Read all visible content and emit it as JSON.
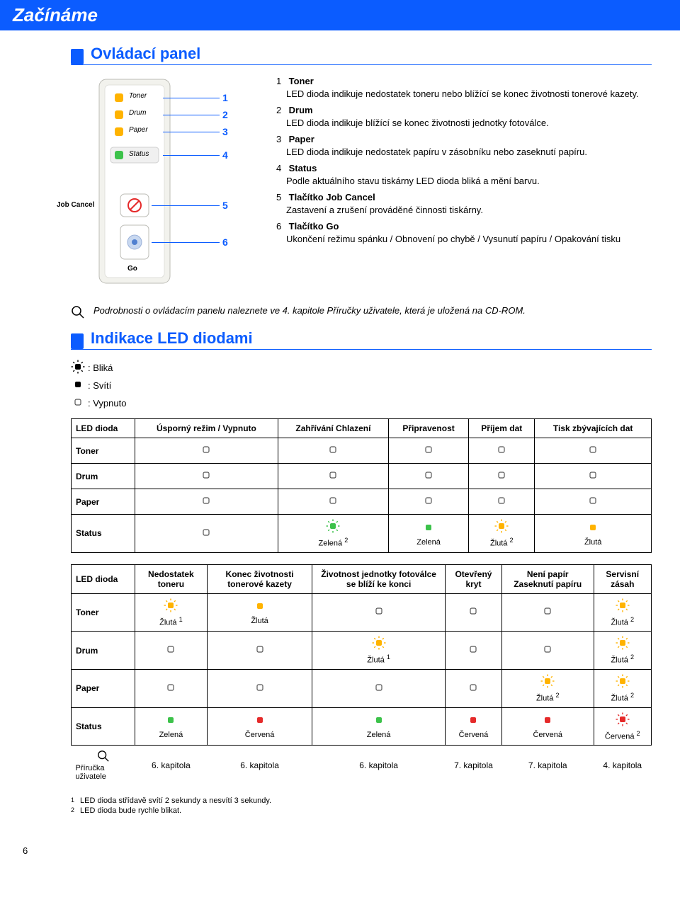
{
  "colors": {
    "blue": "#0b5cff",
    "white": "#ffffff",
    "black": "#000000",
    "panel_bg": "#f2f2ed",
    "panel_border": "#bcbcb6",
    "led_amber": "#ffb300",
    "led_green": "#3cc24a",
    "led_red": "#e52a2a",
    "led_off_border": "#555555",
    "status_seg_bg": "#f0f0f0",
    "button_grey": "#d0d0d0"
  },
  "header": {
    "title": "Začínáme"
  },
  "section1": {
    "title": "Ovládací panel",
    "panel_labels": {
      "toner": "Toner",
      "drum": "Drum",
      "paper": "Paper",
      "status": "Status",
      "go": "Go",
      "job_cancel": "Job Cancel"
    },
    "items": [
      {
        "num": "1",
        "title": "Toner",
        "text": "LED dioda indikuje nedostatek toneru nebo blížící se konec životnosti tonerové kazety."
      },
      {
        "num": "2",
        "title": "Drum",
        "text": "LED dioda indikuje blížící se konec životnosti jednotky fotoválce."
      },
      {
        "num": "3",
        "title": "Paper",
        "text": "LED dioda indikuje nedostatek papíru v zásobníku nebo zaseknutí papíru."
      },
      {
        "num": "4",
        "title": "Status",
        "text": "Podle aktuálního stavu tiskárny LED dioda bliká a mění barvu."
      },
      {
        "num": "5",
        "title": "Tlačítko Job Cancel",
        "text": "Zastavení a zrušení prováděné činnosti tiskárny."
      },
      {
        "num": "6",
        "title": "Tlačítko Go",
        "text": "Ukončení režimu spánku / Obnovení po chybě / Vysunutí papíru / Opakování tisku"
      }
    ]
  },
  "note": {
    "text": "Podrobnosti o ovládacím panelu naleznete ve 4. kapitole Příručky uživatele, která je uložená na CD-ROM."
  },
  "section2": {
    "title": "Indikace LED diodami",
    "legend": {
      "blink": ": Bliká",
      "on": ": Svítí",
      "off": ": Vypnuto"
    }
  },
  "icon_shapes": {
    "blink": {
      "fill_on": true,
      "burst": true
    },
    "on": {
      "fill_on": true,
      "burst": false
    },
    "off": {
      "fill_on": false,
      "burst": false
    }
  },
  "table1": {
    "headers": [
      "LED dioda",
      "Úsporný režim / Vypnuto",
      "Zahřívání Chlazení",
      "Připravenost",
      "Příjem dat",
      "Tisk zbývajících dat"
    ],
    "rows": [
      {
        "label": "Toner",
        "cells": [
          {
            "t": "off"
          },
          {
            "t": "off"
          },
          {
            "t": "off"
          },
          {
            "t": "off"
          },
          {
            "t": "off"
          }
        ]
      },
      {
        "label": "Drum",
        "cells": [
          {
            "t": "off"
          },
          {
            "t": "off"
          },
          {
            "t": "off"
          },
          {
            "t": "off"
          },
          {
            "t": "off"
          }
        ]
      },
      {
        "label": "Paper",
        "cells": [
          {
            "t": "off"
          },
          {
            "t": "off"
          },
          {
            "t": "off"
          },
          {
            "t": "off"
          },
          {
            "t": "off"
          }
        ]
      },
      {
        "label": "Status",
        "cells": [
          {
            "t": "off"
          },
          {
            "t": "blink",
            "color": "#3cc24a",
            "cap": "Zelená ",
            "sup": "2"
          },
          {
            "t": "on",
            "color": "#3cc24a",
            "cap": "Zelená"
          },
          {
            "t": "blink",
            "color": "#ffb300",
            "cap": "Žlutá ",
            "sup": "2"
          },
          {
            "t": "on",
            "color": "#ffb300",
            "cap": "Žlutá"
          }
        ]
      }
    ]
  },
  "table2": {
    "headers": [
      "LED dioda",
      "Nedostatek toneru",
      "Konec životnosti tonerové kazety",
      "Životnost jednotky fotoválce se blíží ke konci",
      "Otevřený kryt",
      "Není papír Zaseknutí papíru",
      "Servisní zásah"
    ],
    "rows": [
      {
        "label": "Toner",
        "cells": [
          {
            "t": "blink",
            "color": "#ffb300",
            "cap": "Žlutá ",
            "sup": "1"
          },
          {
            "t": "on",
            "color": "#ffb300",
            "cap": "Žlutá"
          },
          {
            "t": "off"
          },
          {
            "t": "off"
          },
          {
            "t": "off"
          },
          {
            "t": "blink",
            "color": "#ffb300",
            "cap": "Žlutá ",
            "sup": "2"
          }
        ]
      },
      {
        "label": "Drum",
        "cells": [
          {
            "t": "off"
          },
          {
            "t": "off"
          },
          {
            "t": "blink",
            "color": "#ffb300",
            "cap": "Žlutá ",
            "sup": "1"
          },
          {
            "t": "off"
          },
          {
            "t": "off"
          },
          {
            "t": "blink",
            "color": "#ffb300",
            "cap": "Žlutá ",
            "sup": "2"
          }
        ]
      },
      {
        "label": "Paper",
        "cells": [
          {
            "t": "off"
          },
          {
            "t": "off"
          },
          {
            "t": "off"
          },
          {
            "t": "off"
          },
          {
            "t": "blink",
            "color": "#ffb300",
            "cap": "Žlutá ",
            "sup": "2"
          },
          {
            "t": "blink",
            "color": "#ffb300",
            "cap": "Žlutá ",
            "sup": "2"
          }
        ]
      },
      {
        "label": "Status",
        "cells": [
          {
            "t": "on",
            "color": "#3cc24a",
            "cap": "Zelená"
          },
          {
            "t": "on",
            "color": "#e52a2a",
            "cap": "Červená"
          },
          {
            "t": "on",
            "color": "#3cc24a",
            "cap": "Zelená"
          },
          {
            "t": "on",
            "color": "#e52a2a",
            "cap": "Červená"
          },
          {
            "t": "on",
            "color": "#e52a2a",
            "cap": "Červená"
          },
          {
            "t": "blink",
            "color": "#e52a2a",
            "cap": "Červená ",
            "sup": "2"
          }
        ]
      },
      {
        "label_icon": true,
        "label": "Příručka uživatele",
        "cells": [
          {
            "text": "6. kapitola"
          },
          {
            "text": "6. kapitola"
          },
          {
            "text": "6. kapitola"
          },
          {
            "text": "7. kapitola"
          },
          {
            "text": "7. kapitola"
          },
          {
            "text": "4. kapitola"
          }
        ]
      }
    ]
  },
  "footnotes": [
    {
      "n": "1",
      "text": "LED dioda střídavě svítí 2 sekundy a nesvítí 3 sekundy."
    },
    {
      "n": "2",
      "text": "LED dioda bude rychle blikat."
    }
  ],
  "page_number": "6"
}
